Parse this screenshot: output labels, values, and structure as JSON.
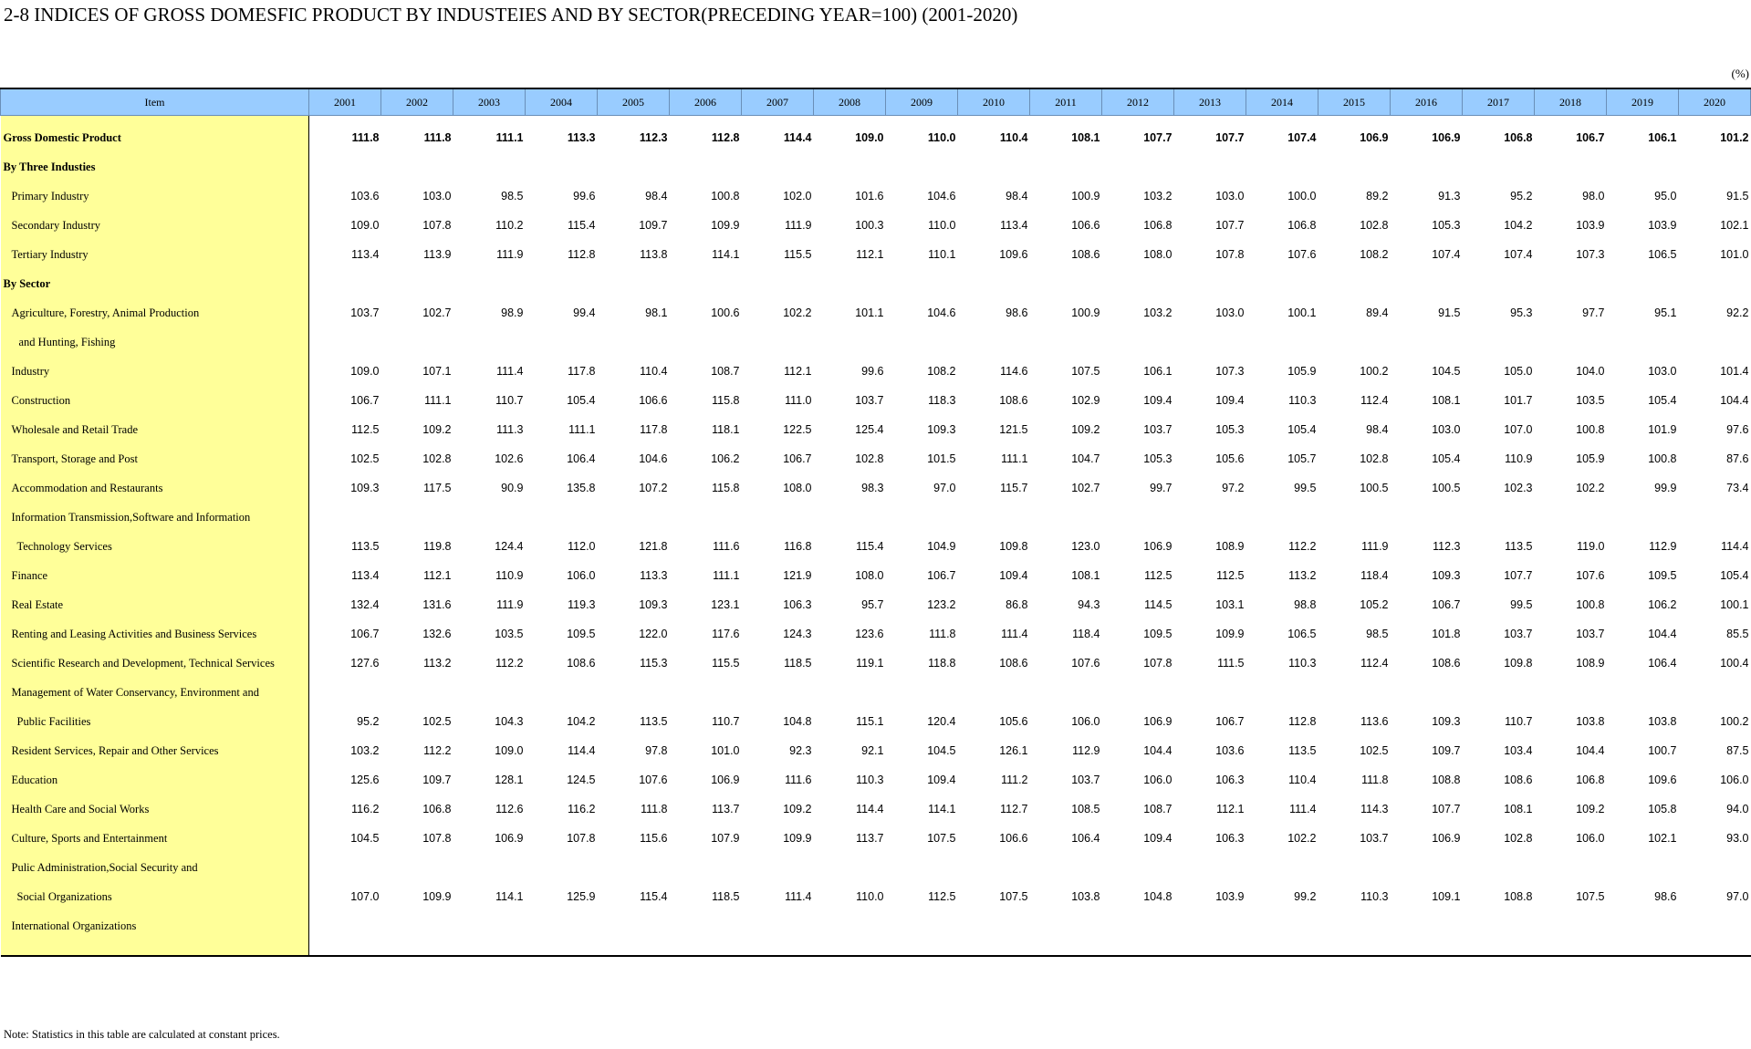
{
  "title": "2-8 INDICES OF GROSS DOMESFIC PRODUCT BY INDUSTEIES  AND BY SECTOR(PRECEDING YEAR=100) (2001-2020)",
  "unit": "(%)",
  "header": {
    "item_label": "Item",
    "years": [
      "2001",
      "2002",
      "2003",
      "2004",
      "2005",
      "2006",
      "2007",
      "2008",
      "2009",
      "2010",
      "2011",
      "2012",
      "2013",
      "2014",
      "2015",
      "2016",
      "2017",
      "2018",
      "2019",
      "2020"
    ]
  },
  "rows": [
    {
      "label": "",
      "level": 0,
      "bold": false,
      "values": [],
      "spacer": true
    },
    {
      "label": "Gross Domestic Product",
      "level": 0,
      "bold": true,
      "values": [
        "111.8",
        "111.8",
        "111.1",
        "113.3",
        "112.3",
        "112.8",
        "114.4",
        "109.0",
        "110.0",
        "110.4",
        "108.1",
        "107.7",
        "107.7",
        "107.4",
        "106.9",
        "106.9",
        "106.8",
        "106.7",
        "106.1",
        "101.2"
      ]
    },
    {
      "label": "By Three Industies",
      "level": 0,
      "bold": true,
      "values": []
    },
    {
      "label": "Primary Industry",
      "level": 1,
      "bold": false,
      "values": [
        "103.6",
        "103.0",
        "98.5",
        "99.6",
        "98.4",
        "100.8",
        "102.0",
        "101.6",
        "104.6",
        "98.4",
        "100.9",
        "103.2",
        "103.0",
        "100.0",
        "89.2",
        "91.3",
        "95.2",
        "98.0",
        "95.0",
        "91.5"
      ]
    },
    {
      "label": "Secondary Industry",
      "level": 1,
      "bold": false,
      "values": [
        "109.0",
        "107.8",
        "110.2",
        "115.4",
        "109.7",
        "109.9",
        "111.9",
        "100.3",
        "110.0",
        "113.4",
        "106.6",
        "106.8",
        "107.7",
        "106.8",
        "102.8",
        "105.3",
        "104.2",
        "103.9",
        "103.9",
        "102.1"
      ]
    },
    {
      "label": "Tertiary Industry",
      "level": 1,
      "bold": false,
      "values": [
        "113.4",
        "113.9",
        "111.9",
        "112.8",
        "113.8",
        "114.1",
        "115.5",
        "112.1",
        "110.1",
        "109.6",
        "108.6",
        "108.0",
        "107.8",
        "107.6",
        "108.2",
        "107.4",
        "107.4",
        "107.3",
        "106.5",
        "101.0"
      ]
    },
    {
      "label": "By Sector",
      "level": 0,
      "bold": true,
      "values": []
    },
    {
      "label": "Agriculture, Forestry, Animal Production",
      "level": 1,
      "bold": false,
      "values": [
        "103.7",
        "102.7",
        "98.9",
        "99.4",
        "98.1",
        "100.6",
        "102.2",
        "101.1",
        "104.6",
        "98.6",
        "100.9",
        "103.2",
        "103.0",
        "100.1",
        "89.4",
        "91.5",
        "95.3",
        "97.7",
        "95.1",
        "92.2"
      ]
    },
    {
      "label": "and Hunting, Fishing",
      "level": 2,
      "bold": false,
      "values": []
    },
    {
      "label": "Industry",
      "level": 1,
      "bold": false,
      "values": [
        "109.0",
        "107.1",
        "111.4",
        "117.8",
        "110.4",
        "108.7",
        "112.1",
        "99.6",
        "108.2",
        "114.6",
        "107.5",
        "106.1",
        "107.3",
        "105.9",
        "100.2",
        "104.5",
        "105.0",
        "104.0",
        "103.0",
        "101.4"
      ]
    },
    {
      "label": "Construction",
      "level": 1,
      "bold": false,
      "values": [
        "106.7",
        "111.1",
        "110.7",
        "105.4",
        "106.6",
        "115.8",
        "111.0",
        "103.7",
        "118.3",
        "108.6",
        "102.9",
        "109.4",
        "109.4",
        "110.3",
        "112.4",
        "108.1",
        "101.7",
        "103.5",
        "105.4",
        "104.4"
      ]
    },
    {
      "label": "Wholesale and Retail Trade",
      "level": 1,
      "bold": false,
      "values": [
        "112.5",
        "109.2",
        "111.3",
        "111.1",
        "117.8",
        "118.1",
        "122.5",
        "125.4",
        "109.3",
        "121.5",
        "109.2",
        "103.7",
        "105.3",
        "105.4",
        "98.4",
        "103.0",
        "107.0",
        "100.8",
        "101.9",
        "97.6"
      ]
    },
    {
      "label": "Transport, Storage and Post",
      "level": 1,
      "bold": false,
      "values": [
        "102.5",
        "102.8",
        "102.6",
        "106.4",
        "104.6",
        "106.2",
        "106.7",
        "102.8",
        "101.5",
        "111.1",
        "104.7",
        "105.3",
        "105.6",
        "105.7",
        "102.8",
        "105.4",
        "110.9",
        "105.9",
        "100.8",
        "87.6"
      ]
    },
    {
      "label": "Accommodation and Restaurants",
      "level": 1,
      "bold": false,
      "values": [
        "109.3",
        "117.5",
        "90.9",
        "135.8",
        "107.2",
        "115.8",
        "108.0",
        "98.3",
        "97.0",
        "115.7",
        "102.7",
        "99.7",
        "97.2",
        "99.5",
        "100.5",
        "100.5",
        "102.3",
        "102.2",
        "99.9",
        "73.4"
      ]
    },
    {
      "label": "Information Transmission,Software and Information",
      "level": 1,
      "bold": false,
      "values": []
    },
    {
      "label": "Technology Services",
      "level": 2,
      "bold": false,
      "values": [
        "113.5",
        "119.8",
        "124.4",
        "112.0",
        "121.8",
        "111.6",
        "116.8",
        "115.4",
        "104.9",
        "109.8",
        "123.0",
        "106.9",
        "108.9",
        "112.2",
        "111.9",
        "112.3",
        "113.5",
        "119.0",
        "112.9",
        "114.4"
      ]
    },
    {
      "label": "Finance",
      "level": 1,
      "bold": false,
      "values": [
        "113.4",
        "112.1",
        "110.9",
        "106.0",
        "113.3",
        "111.1",
        "121.9",
        "108.0",
        "106.7",
        "109.4",
        "108.1",
        "112.5",
        "112.5",
        "113.2",
        "118.4",
        "109.3",
        "107.7",
        "107.6",
        "109.5",
        "105.4"
      ]
    },
    {
      "label": "Real Estate",
      "level": 1,
      "bold": false,
      "values": [
        "132.4",
        "131.6",
        "111.9",
        "119.3",
        "109.3",
        "123.1",
        "106.3",
        "95.7",
        "123.2",
        "86.8",
        "94.3",
        "114.5",
        "103.1",
        "98.8",
        "105.2",
        "106.7",
        "99.5",
        "100.8",
        "106.2",
        "100.1"
      ]
    },
    {
      "label": "Renting and Leasing Activities and Business Services",
      "level": 1,
      "bold": false,
      "values": [
        "106.7",
        "132.6",
        "103.5",
        "109.5",
        "122.0",
        "117.6",
        "124.3",
        "123.6",
        "111.8",
        "111.4",
        "118.4",
        "109.5",
        "109.9",
        "106.5",
        "98.5",
        "101.8",
        "103.7",
        "103.7",
        "104.4",
        "85.5"
      ]
    },
    {
      "label": "Scientific Research and Development, Technical Services",
      "level": 1,
      "bold": false,
      "values": [
        "127.6",
        "113.2",
        "112.2",
        "108.6",
        "115.3",
        "115.5",
        "118.5",
        "119.1",
        "118.8",
        "108.6",
        "107.6",
        "107.8",
        "111.5",
        "110.3",
        "112.4",
        "108.6",
        "109.8",
        "108.9",
        "106.4",
        "100.4"
      ]
    },
    {
      "label": "Management of Water Conservancy, Environment and",
      "level": 1,
      "bold": false,
      "values": []
    },
    {
      "label": "Public Facilities",
      "level": 2,
      "bold": false,
      "values": [
        "95.2",
        "102.5",
        "104.3",
        "104.2",
        "113.5",
        "110.7",
        "104.8",
        "115.1",
        "120.4",
        "105.6",
        "106.0",
        "106.9",
        "106.7",
        "112.8",
        "113.6",
        "109.3",
        "110.7",
        "103.8",
        "103.8",
        "100.2"
      ]
    },
    {
      "label": "Resident Services, Repair and Other Services",
      "level": 1,
      "bold": false,
      "values": [
        "103.2",
        "112.2",
        "109.0",
        "114.4",
        "97.8",
        "101.0",
        "92.3",
        "92.1",
        "104.5",
        "126.1",
        "112.9",
        "104.4",
        "103.6",
        "113.5",
        "102.5",
        "109.7",
        "103.4",
        "104.4",
        "100.7",
        "87.5"
      ]
    },
    {
      "label": "Education",
      "level": 1,
      "bold": false,
      "values": [
        "125.6",
        "109.7",
        "128.1",
        "124.5",
        "107.6",
        "106.9",
        "111.6",
        "110.3",
        "109.4",
        "111.2",
        "103.7",
        "106.0",
        "106.3",
        "110.4",
        "111.8",
        "108.8",
        "108.6",
        "106.8",
        "109.6",
        "106.0"
      ]
    },
    {
      "label": "Health Care and Social Works",
      "level": 1,
      "bold": false,
      "values": [
        "116.2",
        "106.8",
        "112.6",
        "116.2",
        "111.8",
        "113.7",
        "109.2",
        "114.4",
        "114.1",
        "112.7",
        "108.5",
        "108.7",
        "112.1",
        "111.4",
        "114.3",
        "107.7",
        "108.1",
        "109.2",
        "105.8",
        "94.0"
      ]
    },
    {
      "label": "Culture, Sports and Entertainment",
      "level": 1,
      "bold": false,
      "values": [
        "104.5",
        "107.8",
        "106.9",
        "107.8",
        "115.6",
        "107.9",
        "109.9",
        "113.7",
        "107.5",
        "106.6",
        "106.4",
        "109.4",
        "106.3",
        "102.2",
        "103.7",
        "106.9",
        "102.8",
        "106.0",
        "102.1",
        "93.0"
      ]
    },
    {
      "label": "Pulic Administration,Social Security and",
      "level": 1,
      "bold": false,
      "values": []
    },
    {
      "label": "Social Organizations",
      "level": 2,
      "bold": false,
      "values": [
        "107.0",
        "109.9",
        "114.1",
        "125.9",
        "115.4",
        "118.5",
        "111.4",
        "110.0",
        "112.5",
        "107.5",
        "103.8",
        "104.8",
        "103.9",
        "99.2",
        "110.3",
        "109.1",
        "108.8",
        "107.5",
        "98.6",
        "97.0"
      ]
    },
    {
      "label": "International Organizations",
      "level": 1,
      "bold": false,
      "values": []
    }
  ],
  "note": "Note:  Statistics in this table are calculated at constant prices."
}
